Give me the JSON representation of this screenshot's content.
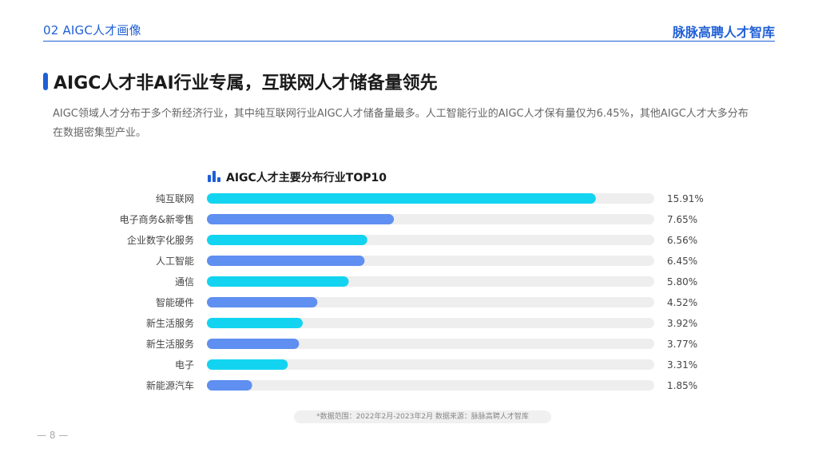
{
  "header": {
    "section": "02 AIGC人才画像",
    "brand": "脉脉高聘人才智库"
  },
  "title": "AIGC人才非AI行业专属，互联网人才储备量领先",
  "lead": "AIGC领域人才分布于多个新经济行业，其中纯互联网行业AIGC人才储备量最多。人工智能行业的AIGC人才保有量仅为6.45%，其他AIGC人才大多分布在数据密集型产业。",
  "colors": {
    "accent": "#1f5fd6",
    "bar_cyan": "#12d4f0",
    "bar_blue": "#5f8ff0",
    "track": "#eeeeee"
  },
  "chart_data": {
    "type": "bar",
    "orientation": "horizontal",
    "title": "AIGC人才主要分布行业TOP10",
    "categories": [
      "纯互联网",
      "电子商务&新零售",
      "企业数字化服务",
      "人工智能",
      "通信",
      "智能硬件",
      "新生活服务",
      "新生活服务",
      "电子",
      "新能源汽车"
    ],
    "values": [
      15.91,
      7.65,
      6.56,
      6.45,
      5.8,
      4.52,
      3.92,
      3.77,
      3.31,
      1.85
    ],
    "value_labels": [
      "15.91%",
      "7.65%",
      "6.56%",
      "6.45%",
      "5.80%",
      "4.52%",
      "3.92%",
      "3.77%",
      "3.31%",
      "1.85%"
    ],
    "xlim": [
      0,
      18.3
    ],
    "grid": false,
    "bar_colors_alternate": [
      "#12d4f0",
      "#5f8ff0"
    ]
  },
  "footnote": "*数据范围：2022年2月-2023年2月     数据来源：脉脉高聘人才智库",
  "page_number": "— 8 —"
}
